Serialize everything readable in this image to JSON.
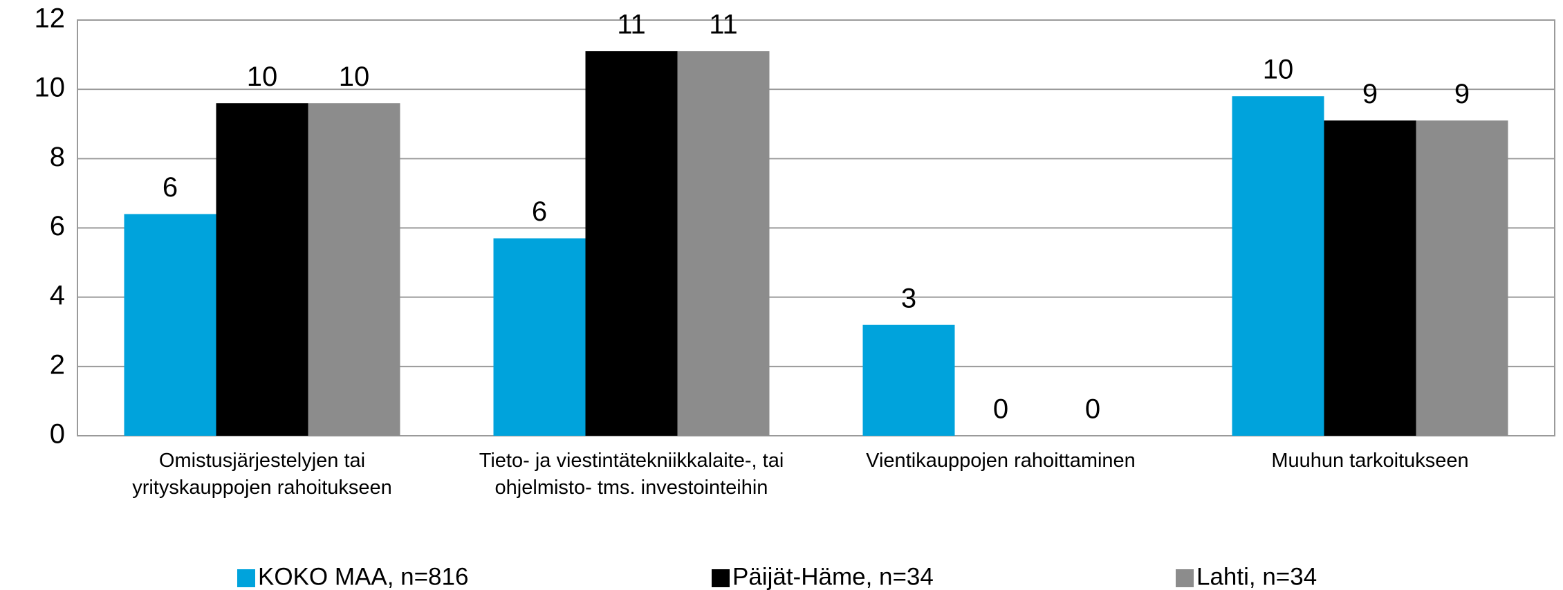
{
  "chart_data": {
    "type": "bar",
    "categories": [
      "Omistusjärjestelyjen tai\nyrityskauppojen rahoitukseen",
      "Tieto- ja viestintätekniikkalaite-, tai\nohjelmisto- tms. investointeihin",
      "Vientikauppojen rahoittaminen",
      "Muuhun tarkoitukseen"
    ],
    "series": [
      {
        "name": "KOKO MAA, n=816",
        "color": "#00a3dc",
        "values": [
          6.4,
          5.7,
          3.2,
          9.8
        ],
        "value_labels": [
          "6",
          "6",
          "3",
          "10"
        ]
      },
      {
        "name": "Päijät-Häme, n=34",
        "color": "#000000",
        "values": [
          9.6,
          11.1,
          0,
          9.1
        ],
        "value_labels": [
          "10",
          "11",
          "0",
          "9"
        ]
      },
      {
        "name": "Lahti, n=34",
        "color": "#8c8c8c",
        "values": [
          9.6,
          11.1,
          0,
          9.1
        ],
        "value_labels": [
          "10",
          "11",
          "0",
          "9"
        ]
      }
    ],
    "ylim": [
      0,
      12
    ],
    "yticks": [
      0,
      2,
      4,
      6,
      8,
      10,
      12
    ],
    "grid": true,
    "legend": "bottom"
  }
}
